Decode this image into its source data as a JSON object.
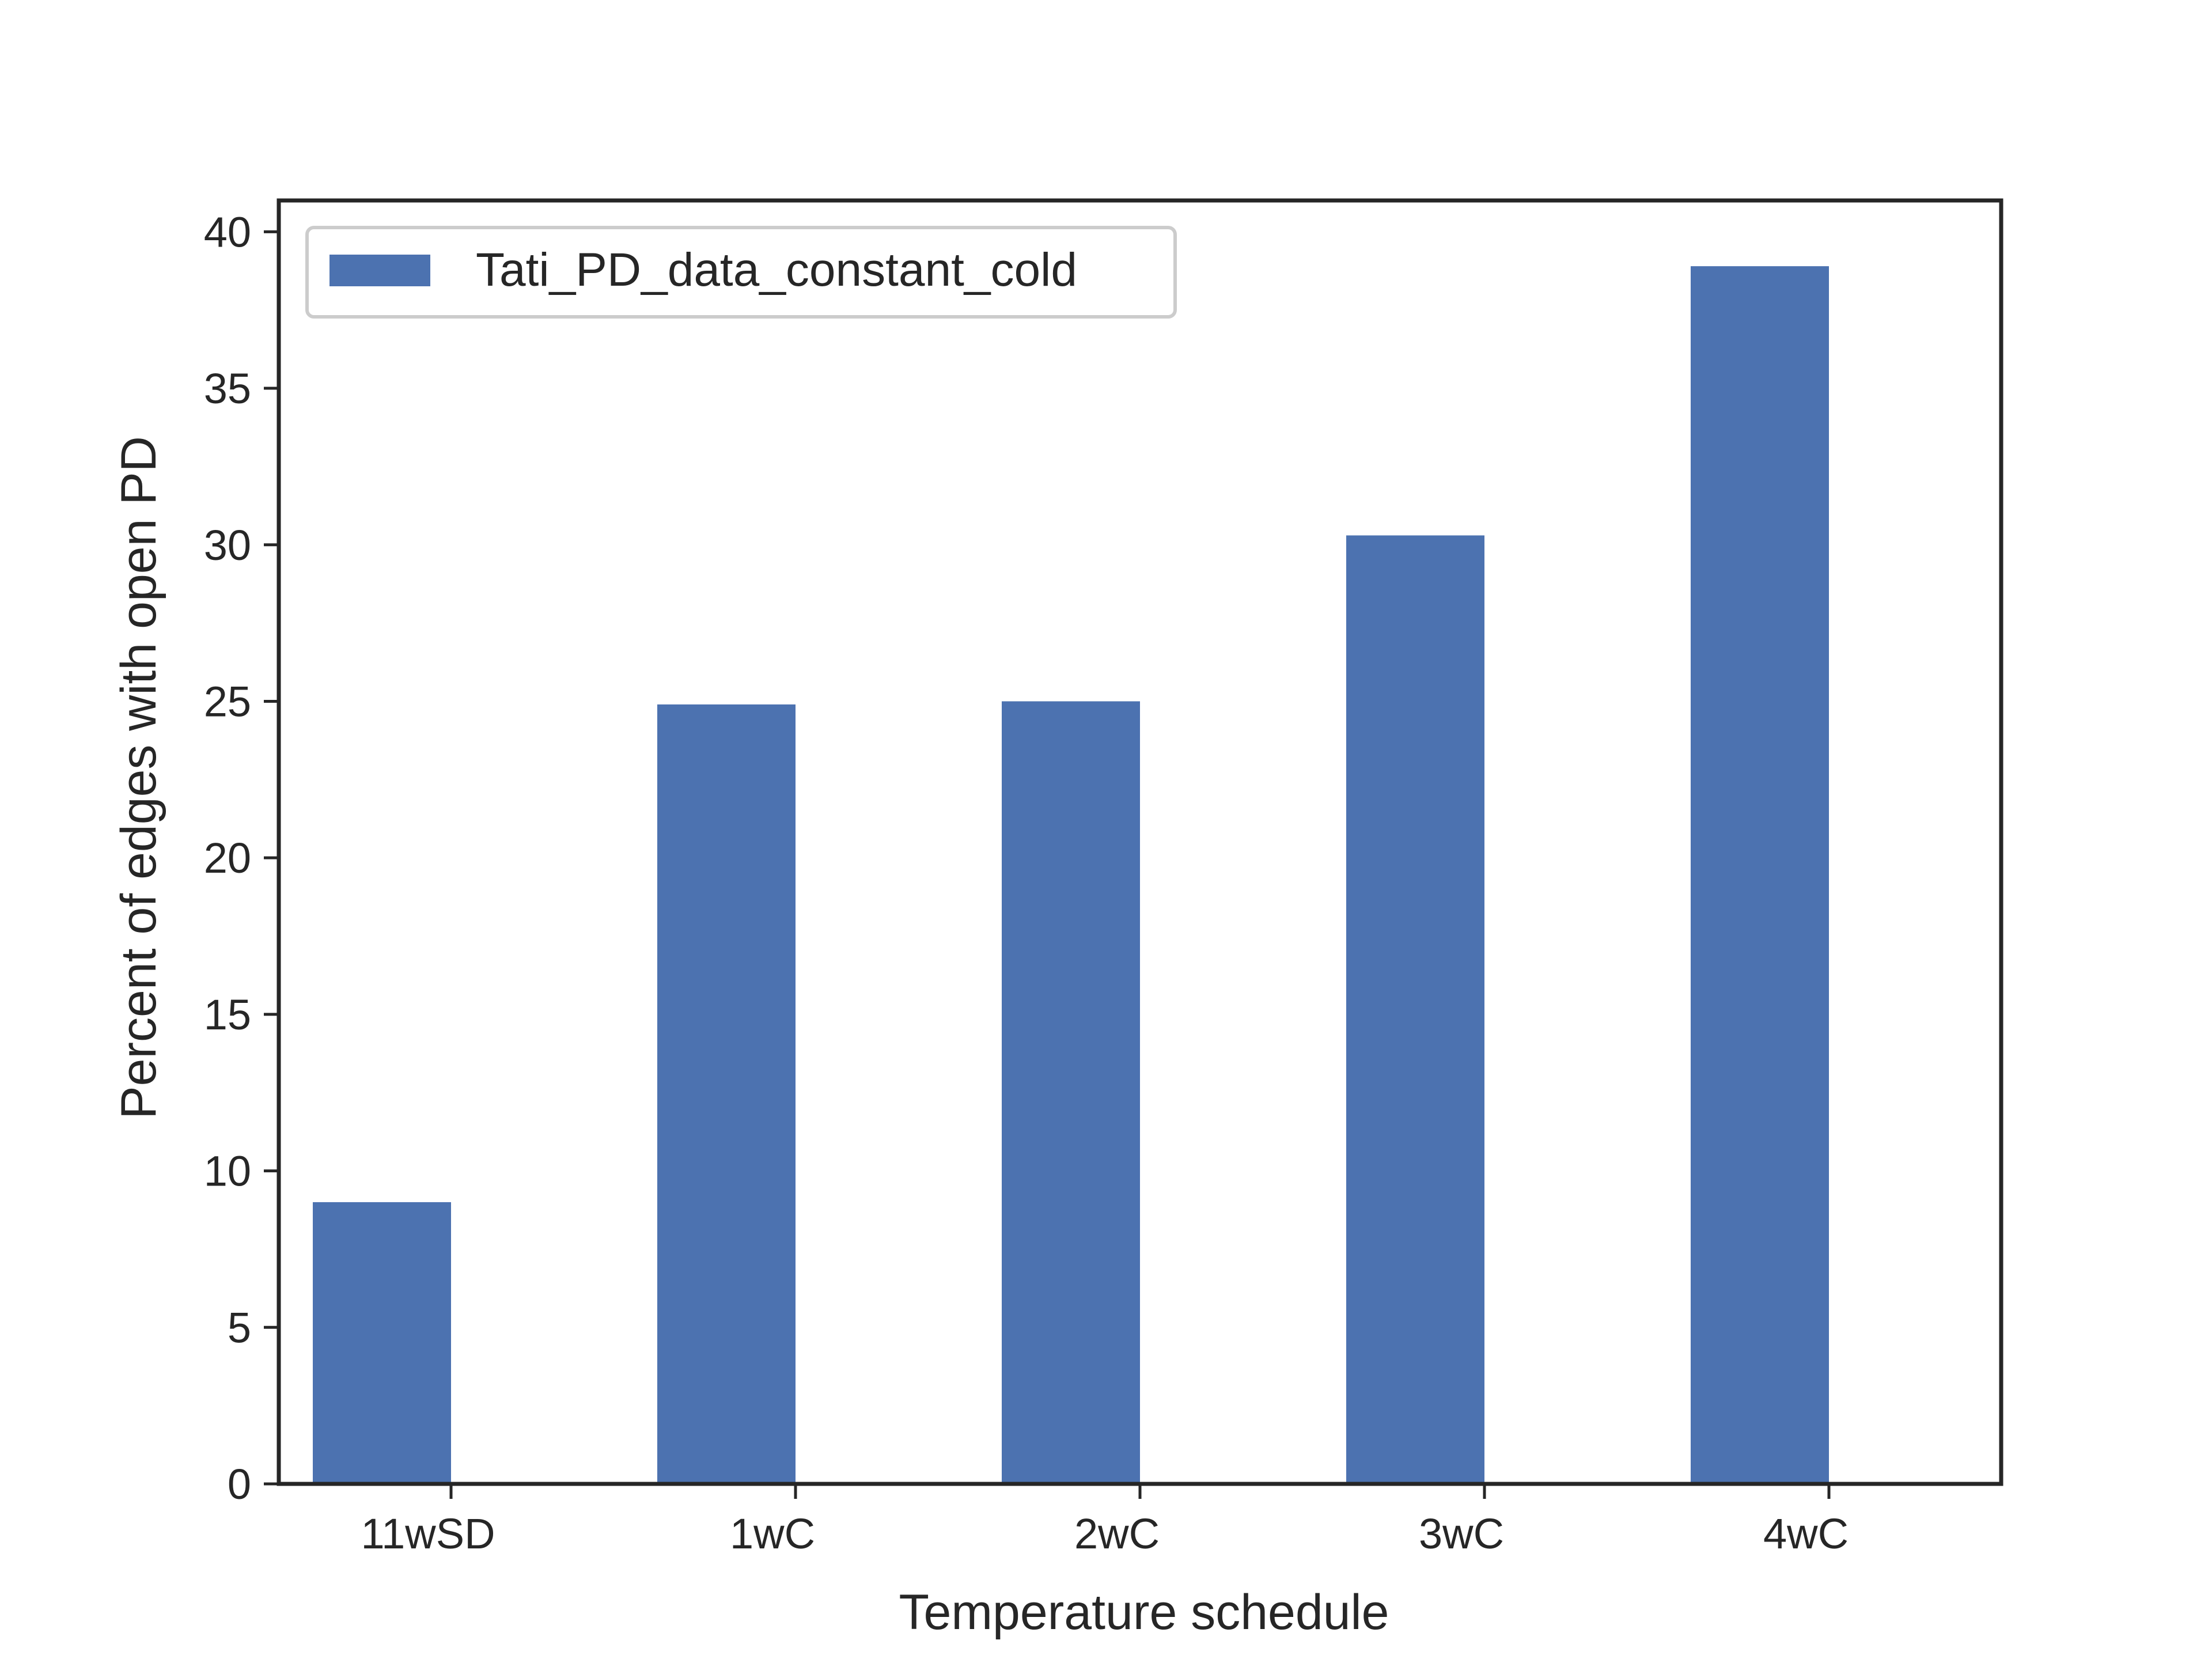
{
  "chart_data": {
    "type": "bar",
    "xlabel": "Temperature schedule",
    "ylabel": "Percent of edges with open PD",
    "categories": [
      "11wSD",
      "1wC",
      "2wC",
      "3wC",
      "4wC"
    ],
    "series": [
      {
        "name": "Tati_PD_data_constant_cold",
        "values": [
          9.0,
          24.9,
          25.0,
          30.3,
          38.9
        ],
        "color": "#4c72b0"
      }
    ],
    "ylim": [
      0,
      41
    ],
    "yticks": [
      0,
      5,
      10,
      15,
      20,
      25,
      30,
      35,
      40
    ],
    "grid": false,
    "legend_position": "upper-left"
  }
}
